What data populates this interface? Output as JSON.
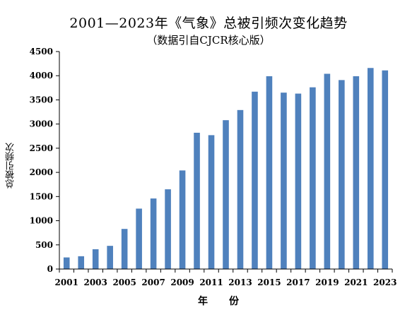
{
  "chart_data": {
    "type": "bar",
    "title": "2001—2023年《气象》总被引频次变化趋势",
    "subtitle": "（数据引自CJCR核心版）",
    "xlabel": "年　份",
    "ylabel": "总被引频次",
    "ylim": [
      0,
      4500
    ],
    "yticks": [
      0,
      500,
      1000,
      1500,
      2000,
      2500,
      3000,
      3500,
      4000,
      4500
    ],
    "grid": false,
    "legend": "none",
    "bar_color": "#4f81bd",
    "categories": [
      "2001",
      "2002",
      "2003",
      "2004",
      "2005",
      "2006",
      "2007",
      "2008",
      "2009",
      "2010",
      "2011",
      "2012",
      "2013",
      "2014",
      "2015",
      "2016",
      "2017",
      "2018",
      "2019",
      "2020",
      "2021",
      "2022",
      "2023"
    ],
    "x_tick_labels": [
      "2001",
      "2003",
      "2005",
      "2007",
      "2009",
      "2011",
      "2013",
      "2015",
      "2017",
      "2019",
      "2021",
      "2023"
    ],
    "values": [
      240,
      265,
      410,
      480,
      830,
      1250,
      1460,
      1650,
      2040,
      2820,
      2770,
      3080,
      3290,
      3670,
      3990,
      3650,
      3630,
      3760,
      4040,
      3910,
      3990,
      4160,
      4110
    ]
  }
}
